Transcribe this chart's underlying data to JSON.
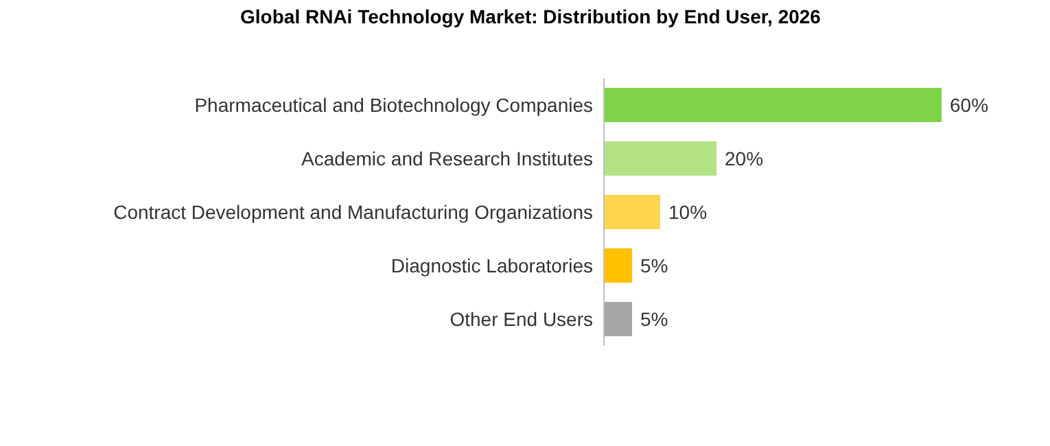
{
  "chart_data": {
    "type": "bar",
    "orientation": "horizontal",
    "title": "Global RNAi Technology Market: Distribution by End User, 2026",
    "categories": [
      "Pharmaceutical and Biotechnology Companies",
      "Academic and Research Institutes",
      "Contract Development and Manufacturing Organizations",
      "Diagnostic Laboratories",
      "Other End Users"
    ],
    "values": [
      60,
      20,
      10,
      5,
      5
    ],
    "value_labels": [
      "60%",
      "20%",
      "10%",
      "5%",
      "5%"
    ],
    "colors": [
      "#7ed348",
      "#b5e284",
      "#ffd54f",
      "#ffc000",
      "#a6a6a6"
    ]
  }
}
